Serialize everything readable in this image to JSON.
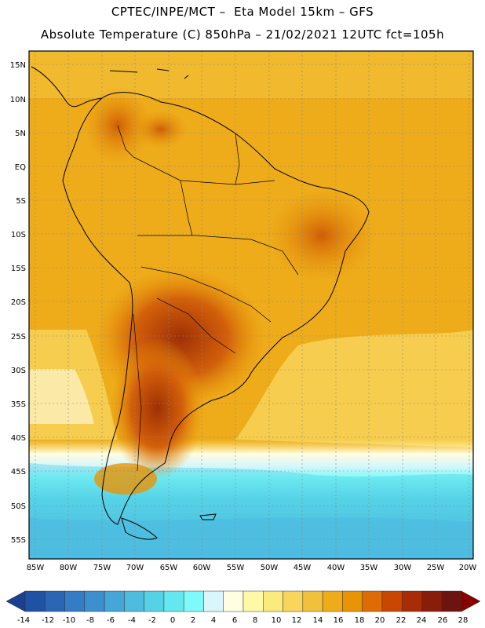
{
  "header": {
    "line1": "CPTEC/INPE/MCT –  Eta Model 15km – GFS",
    "line2": "Absolute Temperature (C) 850hPa – 21/02/2021 12UTC fct=105h"
  },
  "map": {
    "lat_labels": [
      "15N",
      "10N",
      "5N",
      "EQ",
      "5S",
      "10S",
      "15S",
      "20S",
      "25S",
      "30S",
      "35S",
      "40S",
      "45S",
      "50S",
      "55S"
    ],
    "lon_labels": [
      "85W",
      "80W",
      "75W",
      "70W",
      "65W",
      "60W",
      "55W",
      "50W",
      "45W",
      "40W",
      "35W",
      "30W",
      "25W",
      "20W"
    ],
    "extent": {
      "lon_min": -86,
      "lon_max": -19.5,
      "lat_min": -57.5,
      "lat_max": 17
    }
  },
  "colorbar": {
    "labels": [
      "-14",
      "-12",
      "-10",
      "-8",
      "-6",
      "-4",
      "-2",
      "0",
      "2",
      "4",
      "6",
      "8",
      "10",
      "12",
      "14",
      "16",
      "18",
      "20",
      "22",
      "24",
      "26",
      "28"
    ],
    "colors": [
      "#1a3f93",
      "#1f52a3",
      "#2a66b4",
      "#347cc3",
      "#3d90cf",
      "#46a6d8",
      "#4dbcdf",
      "#56d2e6",
      "#66e6ef",
      "#7ffafa",
      "#d8f6fb",
      "#fffde2",
      "#fff8a6",
      "#fbea7d",
      "#f7d65b",
      "#f2c13c",
      "#eeac1b",
      "#e89405",
      "#dd6c03",
      "#c74703",
      "#a82c06",
      "#8a1d0a",
      "#6d1410",
      "#880000"
    ]
  }
}
